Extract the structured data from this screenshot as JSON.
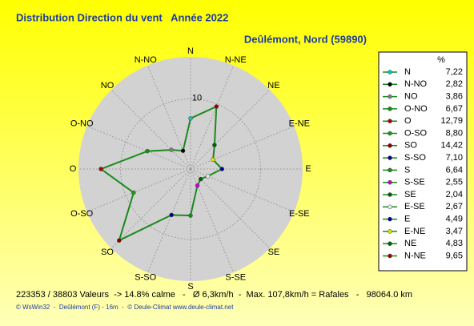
{
  "chart_data": {
    "type": "radar",
    "title": "Distribution Direction du vent   Année 2022",
    "subtitle": "Deûlémont, Nord (59890)",
    "legend_header": "%",
    "categories": [
      "N",
      "N-NO",
      "NO",
      "O-NO",
      "O",
      "O-SO",
      "SO",
      "S-SO",
      "S",
      "S-SE",
      "SE",
      "E-SE",
      "E",
      "E-NE",
      "NE",
      "N-NE"
    ],
    "series": [
      {
        "name": "%",
        "color": "#1a8a1a",
        "values": [
          7.22,
          2.82,
          3.86,
          6.67,
          12.79,
          8.8,
          14.42,
          7.1,
          6.64,
          2.55,
          2.04,
          2.67,
          4.49,
          3.47,
          4.83,
          9.65
        ],
        "value_labels": [
          "7,22",
          "2,82",
          "3,86",
          "6,67",
          "12,79",
          "8,80",
          "14,42",
          "7,10",
          "6,64",
          "2,55",
          "2,04",
          "2,67",
          "4,49",
          "3,47",
          "4,83",
          "9,65"
        ],
        "point_colors": [
          "#00c8c8",
          "#000000",
          "#808080",
          "#1a8a1a",
          "#b00000",
          "#1a9a1a",
          "#8b0000",
          "#000080",
          "#1a8a1a",
          "#d000d0",
          "#006400",
          "#e8e8e8",
          "#0000a0",
          "#e0e000",
          "#006400",
          "#a00000"
        ]
      }
    ],
    "rlim": [
      0,
      16
    ],
    "rticks": [
      10
    ],
    "footer": "223353 / 38803 Valeurs  -> 14.8% calme   -   Ø 6,3km/h  -  Max. 107,8km/h = Rafales   -   98064.0 km",
    "credits": "© WsWin32  -  Deûlémont (F) - 16m  -  © Deule-Climat www.deule-climat.net"
  }
}
